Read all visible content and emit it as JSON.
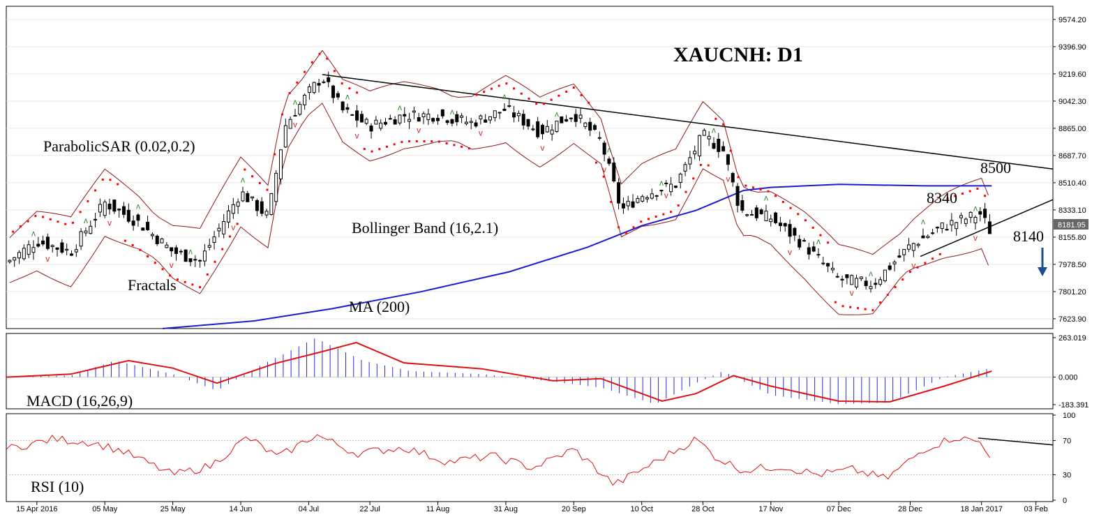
{
  "chart_data": {
    "type": "candlestick",
    "title": "XAUCNH: D1",
    "y_axis": {
      "ticks": [
        "9574.20",
        "9396.90",
        "9219.60",
        "9042.30",
        "8865.00",
        "8687.70",
        "8510.40",
        "8333.10",
        "8155.80",
        "7978.50",
        "7801.20",
        "7623.90"
      ],
      "range": [
        7560,
        9660
      ]
    },
    "x_axis": {
      "ticks": [
        "15 Apr 2016",
        "05 May",
        "25 May",
        "14 Jun",
        "04 Jul",
        "22 Jul",
        "11 Aug",
        "31 Aug",
        "20 Sep",
        "10 Oct",
        "28 Oct",
        "17 Nov",
        "07 Dec",
        "28 Dec",
        "18 Jan 2017",
        "03 Feb"
      ],
      "range": [
        "2016-04-06",
        "2017-02-08"
      ]
    },
    "current_price": "8181.95",
    "close_series": {
      "dates": [
        "2016-04-06",
        "2016-04-15",
        "2016-04-25",
        "2016-05-05",
        "2016-05-15",
        "2016-05-25",
        "2016-06-02",
        "2016-06-14",
        "2016-06-22",
        "2016-06-27",
        "2016-07-04",
        "2016-07-08",
        "2016-07-14",
        "2016-07-22",
        "2016-08-01",
        "2016-08-11",
        "2016-08-21",
        "2016-08-31",
        "2016-09-10",
        "2016-09-20",
        "2016-09-28",
        "2016-10-04",
        "2016-10-10",
        "2016-10-20",
        "2016-10-28",
        "2016-11-03",
        "2016-11-08",
        "2016-11-17",
        "2016-11-27",
        "2016-12-07",
        "2016-12-17",
        "2016-12-28",
        "2017-01-07",
        "2017-01-18",
        "2017-01-20"
      ],
      "values": [
        7990,
        8130,
        8060,
        8380,
        8250,
        8060,
        8000,
        8450,
        8290,
        8880,
        9100,
        9200,
        8980,
        8880,
        8950,
        8950,
        8900,
        8990,
        8840,
        8960,
        8780,
        8330,
        8430,
        8500,
        8820,
        8720,
        8330,
        8280,
        8100,
        7880,
        7850,
        8100,
        8230,
        8310,
        8200
      ]
    },
    "ma_200": {
      "dates": [
        "2016-05-22",
        "2016-06-18",
        "2016-07-11",
        "2016-08-06",
        "2016-09-01",
        "2016-09-24",
        "2016-10-10",
        "2016-10-26",
        "2016-11-09",
        "2016-11-17",
        "2016-12-07",
        "2017-01-01",
        "2017-01-21"
      ],
      "values": [
        7560,
        7610,
        7690,
        7800,
        7930,
        8090,
        8230,
        8330,
        8460,
        8480,
        8500,
        8490,
        8490
      ]
    },
    "trendlines": [
      {
        "dates": [
          "2016-07-08",
          "2017-02-08"
        ],
        "values": [
          9215,
          8600
        ]
      },
      {
        "dates": [
          "2016-12-31",
          "2017-02-08"
        ],
        "values": [
          8030,
          8400
        ]
      }
    ],
    "annotations": {
      "parabolic_sar": "ParabolicSAR (0.02,0.2)",
      "bollinger": "Bollinger Band (16,2.1)",
      "fractals": "Fractals",
      "ma": "MA (200)",
      "level_8500": "8500",
      "level_8340": "8340",
      "level_8140": "8140"
    },
    "macd": {
      "label": "MACD (16,26,9)",
      "ticks": [
        "263.019",
        "0.000",
        "-183.391"
      ],
      "range": [
        -183.391,
        263.019
      ],
      "signal": {
        "dates": [
          "2016-04-06",
          "2016-04-25",
          "2016-05-12",
          "2016-05-25",
          "2016-06-07",
          "2016-06-24",
          "2016-07-08",
          "2016-07-18",
          "2016-08-01",
          "2016-08-24",
          "2016-09-14",
          "2016-09-28",
          "2016-10-16",
          "2016-10-26",
          "2016-11-06",
          "2016-11-17",
          "2016-12-07",
          "2016-12-22",
          "2017-01-07",
          "2017-01-21"
        ],
        "values": [
          0,
          20,
          110,
          60,
          -40,
          90,
          170,
          230,
          95,
          55,
          -25,
          -10,
          -160,
          -110,
          10,
          -60,
          -160,
          -165,
          -60,
          40
        ]
      },
      "histogram": {
        "dates": [
          "2016-04-06",
          "2016-04-25",
          "2016-05-08",
          "2016-05-25",
          "2016-06-07",
          "2016-06-20",
          "2016-07-06",
          "2016-07-20",
          "2016-08-03",
          "2016-08-24",
          "2016-09-14",
          "2016-09-28",
          "2016-10-14",
          "2016-10-26",
          "2016-11-03",
          "2016-11-17",
          "2016-12-07",
          "2016-12-22",
          "2017-01-07",
          "2017-01-21"
        ],
        "values": [
          5,
          10,
          110,
          20,
          -90,
          80,
          260,
          110,
          40,
          20,
          -30,
          -70,
          -180,
          -40,
          40,
          -120,
          -180,
          -170,
          0,
          60
        ]
      }
    },
    "rsi": {
      "label": "RSI (10)",
      "ticks": [
        "100",
        "70",
        "30",
        "0"
      ],
      "range": [
        0,
        100
      ],
      "values_dates": [
        "2016-04-06",
        "2016-04-20",
        "2016-05-01",
        "2016-05-10",
        "2016-05-25",
        "2016-06-05",
        "2016-06-16",
        "2016-06-25",
        "2016-07-06",
        "2016-07-18",
        "2016-08-01",
        "2016-08-14",
        "2016-08-27",
        "2016-09-08",
        "2016-09-20",
        "2016-10-02",
        "2016-10-14",
        "2016-10-26",
        "2016-11-01",
        "2016-11-09",
        "2016-11-20",
        "2016-12-01",
        "2016-12-11",
        "2016-12-21",
        "2017-01-01",
        "2017-01-10",
        "2017-01-18",
        "2017-01-21"
      ],
      "values": [
        60,
        72,
        68,
        58,
        30,
        40,
        74,
        50,
        77,
        55,
        62,
        45,
        52,
        38,
        60,
        18,
        45,
        72,
        50,
        35,
        40,
        30,
        36,
        25,
        60,
        74,
        68,
        50
      ],
      "trendline": {
        "dates": [
          "2017-01-17",
          "2017-02-08"
        ],
        "values": [
          73,
          65
        ]
      }
    }
  }
}
